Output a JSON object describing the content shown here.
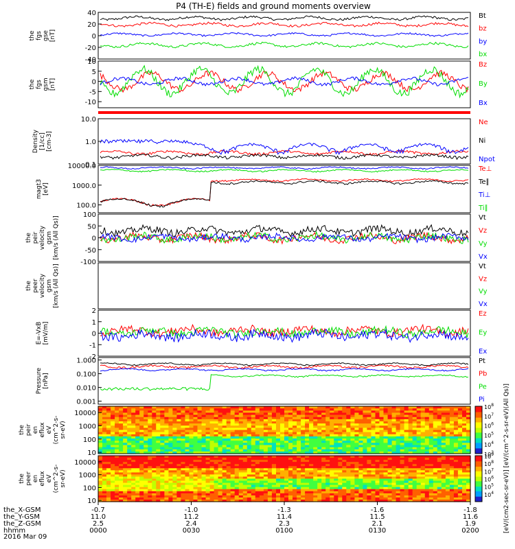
{
  "title": "P4 (TH-E) fields and ground moments overview",
  "date_label": "2016 Mar 09",
  "colors": {
    "black": "#000000",
    "red": "#ff0000",
    "blue": "#0000ff",
    "green": "#00dd00"
  },
  "chart_data": [
    {
      "type": "line",
      "panel": "fgs_gse",
      "ylabel": [
        "the",
        "fgs",
        "gse",
        "[nT]"
      ],
      "ylim": [
        -40,
        40
      ],
      "yticks": [
        40,
        20,
        0,
        -20,
        -40
      ],
      "series": [
        {
          "name": "Bt",
          "color": "black",
          "mean": 30,
          "amp": 2.5,
          "noise": 2
        },
        {
          "name": "bz",
          "color": "red",
          "mean": 19,
          "amp": 2.5,
          "noise": 2
        },
        {
          "name": "by",
          "color": "blue",
          "mean": 2,
          "amp": 2,
          "noise": 1.5
        },
        {
          "name": "bx",
          "color": "green",
          "mean": -16,
          "amp": 3,
          "noise": 2
        }
      ]
    },
    {
      "type": "line",
      "panel": "fgs_gsm",
      "ylabel": [
        "the",
        "fgs",
        "gsm",
        "[nT]"
      ],
      "ylim": [
        -13,
        10
      ],
      "yticks": [
        10,
        5,
        0,
        -5,
        -10
      ],
      "series": [
        {
          "name": "Bz",
          "color": "red",
          "mean": 0,
          "amp": 4,
          "noise": 1.5
        },
        {
          "name": "By",
          "color": "green",
          "mean": 0,
          "amp": 6,
          "noise": 2
        },
        {
          "name": "Bx",
          "color": "blue",
          "mean": 0,
          "amp": 1.5,
          "noise": 0.8
        }
      ]
    },
    {
      "type": "line",
      "panel": "density",
      "scale": "log",
      "ylabel": [
        "Density",
        "[1/cc]",
        "[cm-3]"
      ],
      "ylim": [
        0.1,
        10.0
      ],
      "yticks": [
        10.0,
        1.0,
        0.1
      ],
      "series": [
        {
          "name": "Ne",
          "color": "red",
          "mean": 0.32,
          "amp": 0.05,
          "noise": 0.04
        },
        {
          "name": "Ni",
          "color": "black",
          "mean": 0.22,
          "amp": 0.03,
          "noise": 0.03
        },
        {
          "name": "Npot",
          "color": "blue",
          "mean": 0.55,
          "amp": 0.2,
          "noise": 0.1
        }
      ]
    },
    {
      "type": "line",
      "panel": "temperature",
      "scale": "log",
      "ylabel": [
        "magt3",
        "[eV]"
      ],
      "ylim": [
        40,
        10000
      ],
      "yticks": [
        10000,
        1000,
        100
      ],
      "series": [
        {
          "name": "Te⊥",
          "color": "red",
          "mean": 1800,
          "amp": 200,
          "noise": 150
        },
        {
          "name": "Te∥",
          "color": "black",
          "mean": 1400,
          "amp": 200,
          "noise": 150
        },
        {
          "name": "Ti⊥",
          "color": "blue",
          "mean": 7500,
          "amp": 700,
          "noise": 500
        },
        {
          "name": "Ti∥",
          "color": "green",
          "mean": 5500,
          "amp": 600,
          "noise": 400
        }
      ]
    },
    {
      "type": "line",
      "panel": "peir_velocity",
      "ylabel": [
        "the",
        "peir",
        "velocity",
        "gsm",
        "[km/s (All Qs)]"
      ],
      "ylim": [
        -100,
        100
      ],
      "yticks": [
        100,
        50,
        0,
        -50,
        -100
      ],
      "series": [
        {
          "name": "Vt",
          "color": "black",
          "mean": 30,
          "amp": 10,
          "noise": 15
        },
        {
          "name": "Vz",
          "color": "red",
          "mean": 0,
          "amp": 10,
          "noise": 15
        },
        {
          "name": "Vy",
          "color": "green",
          "mean": 0,
          "amp": 10,
          "noise": 15
        },
        {
          "name": "Vx",
          "color": "blue",
          "mean": 0,
          "amp": 8,
          "noise": 12
        }
      ]
    },
    {
      "type": "line",
      "panel": "peer_velocity",
      "ylabel": [
        "the",
        "peer",
        "velocity",
        "gsm",
        "[km/s (All Qs)]"
      ],
      "ylim": [
        -100,
        100
      ],
      "yticks": [],
      "series": [
        {
          "name": "Vt",
          "color": "black"
        },
        {
          "name": "Vz",
          "color": "red"
        },
        {
          "name": "Vy",
          "color": "green"
        },
        {
          "name": "Vx",
          "color": "blue"
        }
      ]
    },
    {
      "type": "line",
      "panel": "efield",
      "ylabel": [
        "E=-VxB",
        "[mV/m]"
      ],
      "ylim": [
        -2,
        2
      ],
      "yticks": [
        2,
        1,
        0,
        -1,
        -2
      ],
      "series": [
        {
          "name": "Ez",
          "color": "red",
          "mean": 0.2,
          "amp": 0.2,
          "noise": 0.35
        },
        {
          "name": "Ey",
          "color": "green",
          "mean": 0.1,
          "amp": 0.2,
          "noise": 0.35
        },
        {
          "name": "Ex",
          "color": "blue",
          "mean": -0.2,
          "amp": 0.2,
          "noise": 0.4
        }
      ]
    },
    {
      "type": "line",
      "panel": "pressure",
      "scale": "log",
      "ylabel": [
        "Pressure",
        "[nPa]"
      ],
      "ylim": [
        0.0006,
        1.5
      ],
      "yticks": [
        1.0,
        0.1,
        0.01,
        0.001
      ],
      "ytick_labels": [
        "1.000",
        "0.100",
        "0.010",
        "0.001"
      ],
      "series": [
        {
          "name": "Pt",
          "color": "black",
          "mean": 0.5,
          "amp": 0.08,
          "noise": 0.05
        },
        {
          "name": "Pb",
          "color": "red",
          "mean": 0.33,
          "amp": 0.06,
          "noise": 0.05
        },
        {
          "name": "Pe",
          "color": "green",
          "mean": 0.07,
          "amp": 0.01,
          "noise": 0.008
        },
        {
          "name": "Pi",
          "color": "blue",
          "mean": 0.2,
          "amp": 0.03,
          "noise": 0.02
        }
      ]
    },
    {
      "type": "heatmap",
      "panel": "peir_spectrogram",
      "scale": "log",
      "ylabel": [
        "the",
        "peir",
        "en",
        "eflux",
        "eV",
        "(cm^2-s-",
        "sr-eV)"
      ],
      "ylim": [
        8,
        30000
      ],
      "yticks": [
        10000,
        1000,
        100,
        10
      ],
      "ytick_labels": [
        "10000",
        "1000",
        "100",
        "10"
      ],
      "colorbar": {
        "range_exp": [
          3,
          8
        ],
        "tick_exps": [
          8,
          7,
          6,
          5,
          4,
          3
        ]
      }
    },
    {
      "type": "heatmap",
      "panel": "peer_spectrogram",
      "scale": "log",
      "ylabel": [
        "the",
        "peer",
        "en",
        "eflux",
        "eV",
        "(cm^2-s-",
        "sr-eV)"
      ],
      "ylim": [
        8,
        30000
      ],
      "yticks": [
        10000,
        1000,
        100,
        10
      ],
      "ytick_labels": [
        "10000",
        "1000",
        "100",
        "10"
      ],
      "colorbar": {
        "range_exp": [
          3,
          9
        ],
        "tick_exps": [
          9,
          8,
          7,
          6,
          5,
          4
        ]
      }
    }
  ],
  "colorbar_label": "[eV/(cm2-sec-sr-eV)] [eV/(cm^2-s-sr-eV)(All Qs)]",
  "xaxis": {
    "ticks": [
      {
        "x": "-0.7",
        "y": "11.0",
        "z": "2.5",
        "hhmm": "0000"
      },
      {
        "x": "-1.0",
        "y": "11.2",
        "z": "2.4",
        "hhmm": "0030"
      },
      {
        "x": "-1.3",
        "y": "11.4",
        "z": "2.3",
        "hhmm": "0100"
      },
      {
        "x": "-1.6",
        "y": "11.5",
        "z": "2.1",
        "hhmm": "0130"
      },
      {
        "x": "-1.8",
        "y": "11.6",
        "z": "1.9",
        "hhmm": "0200"
      }
    ],
    "row_labels": [
      "the_X-GSM",
      "the_Y-GSM",
      "the_Z-GSM",
      "hhmm"
    ]
  }
}
